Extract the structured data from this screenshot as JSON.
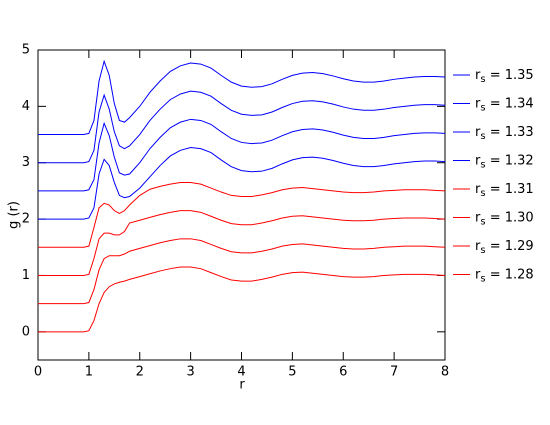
{
  "chart_data": {
    "type": "line",
    "xlabel": "r",
    "ylabel": "g (r)",
    "xlim": [
      0,
      8
    ],
    "ylim": [
      -0.5,
      5
    ],
    "xticks": [
      0,
      1,
      2,
      3,
      4,
      5,
      6,
      7,
      8
    ],
    "yticks": [
      0,
      1,
      2,
      3,
      4,
      5
    ],
    "x": [
      0,
      0.5,
      0.9,
      1.0,
      1.1,
      1.2,
      1.3,
      1.4,
      1.5,
      1.6,
      1.7,
      1.8,
      2.0,
      2.2,
      2.4,
      2.6,
      2.8,
      3.0,
      3.2,
      3.4,
      3.6,
      3.8,
      4.0,
      4.2,
      4.4,
      4.6,
      4.8,
      5.0,
      5.2,
      5.4,
      5.6,
      5.8,
      6.0,
      6.2,
      6.4,
      6.6,
      6.8,
      7.0,
      7.2,
      7.4,
      7.6,
      7.8,
      8.0
    ],
    "series": [
      {
        "name": "rs = 1.35",
        "color": "#0000ff",
        "values": [
          3.5,
          3.5,
          3.5,
          3.52,
          3.75,
          4.45,
          4.8,
          4.55,
          4.05,
          3.75,
          3.72,
          3.8,
          4.0,
          4.25,
          4.45,
          4.62,
          4.72,
          4.77,
          4.75,
          4.68,
          4.55,
          4.43,
          4.36,
          4.34,
          4.35,
          4.4,
          4.48,
          4.55,
          4.59,
          4.6,
          4.58,
          4.54,
          4.49,
          4.45,
          4.43,
          4.43,
          4.45,
          4.48,
          4.5,
          4.52,
          4.53,
          4.53,
          4.52
        ]
      },
      {
        "name": "rs = 1.34",
        "color": "#0000ff",
        "values": [
          3,
          3,
          3,
          3.02,
          3.22,
          3.9,
          4.2,
          3.95,
          3.55,
          3.3,
          3.25,
          3.3,
          3.5,
          3.75,
          3.95,
          4.12,
          4.22,
          4.27,
          4.25,
          4.18,
          4.05,
          3.93,
          3.86,
          3.84,
          3.85,
          3.9,
          3.98,
          4.05,
          4.09,
          4.1,
          4.08,
          4.04,
          3.99,
          3.95,
          3.93,
          3.93,
          3.95,
          3.98,
          4.0,
          4.02,
          4.03,
          4.03,
          4.02
        ]
      },
      {
        "name": "rs = 1.33",
        "color": "#0000ff",
        "values": [
          2.5,
          2.5,
          2.5,
          2.52,
          2.7,
          3.35,
          3.7,
          3.48,
          3.1,
          2.82,
          2.78,
          2.8,
          3.0,
          3.25,
          3.45,
          3.62,
          3.72,
          3.77,
          3.75,
          3.68,
          3.55,
          3.43,
          3.36,
          3.34,
          3.35,
          3.4,
          3.48,
          3.55,
          3.59,
          3.6,
          3.58,
          3.54,
          3.49,
          3.45,
          3.43,
          3.43,
          3.45,
          3.48,
          3.5,
          3.52,
          3.53,
          3.53,
          3.52
        ]
      },
      {
        "name": "rs = 1.32",
        "color": "#0000ff",
        "values": [
          2,
          2,
          2,
          2.02,
          2.2,
          2.8,
          3.06,
          2.95,
          2.65,
          2.42,
          2.38,
          2.4,
          2.55,
          2.75,
          2.95,
          3.12,
          3.22,
          3.27,
          3.25,
          3.18,
          3.05,
          2.93,
          2.86,
          2.84,
          2.85,
          2.9,
          2.98,
          3.05,
          3.09,
          3.1,
          3.08,
          3.04,
          2.99,
          2.95,
          2.93,
          2.93,
          2.95,
          2.98,
          3.0,
          3.02,
          3.03,
          3.03,
          3.02
        ]
      },
      {
        "name": "rs = 1.31",
        "color": "#ff0000",
        "values": [
          1.5,
          1.5,
          1.5,
          1.52,
          1.85,
          2.2,
          2.28,
          2.25,
          2.15,
          2.1,
          2.15,
          2.25,
          2.42,
          2.53,
          2.58,
          2.62,
          2.65,
          2.65,
          2.62,
          2.55,
          2.48,
          2.42,
          2.4,
          2.4,
          2.43,
          2.47,
          2.52,
          2.55,
          2.56,
          2.54,
          2.52,
          2.5,
          2.48,
          2.47,
          2.47,
          2.48,
          2.5,
          2.51,
          2.52,
          2.52,
          2.52,
          2.51,
          2.5
        ]
      },
      {
        "name": "rs = 1.30",
        "color": "#ff0000",
        "values": [
          1,
          1,
          1,
          1.02,
          1.3,
          1.65,
          1.75,
          1.75,
          1.72,
          1.72,
          1.78,
          1.93,
          1.98,
          2.03,
          2.08,
          2.12,
          2.15,
          2.15,
          2.12,
          2.05,
          1.98,
          1.92,
          1.9,
          1.9,
          1.93,
          1.97,
          2.02,
          2.05,
          2.06,
          2.04,
          2.02,
          2.0,
          1.98,
          1.97,
          1.97,
          1.98,
          2.0,
          2.01,
          2.02,
          2.02,
          2.02,
          2.01,
          2.0
        ]
      },
      {
        "name": "rs = 1.29",
        "color": "#ff0000",
        "values": [
          0.5,
          0.5,
          0.5,
          0.52,
          0.75,
          1.1,
          1.3,
          1.35,
          1.35,
          1.35,
          1.38,
          1.43,
          1.48,
          1.53,
          1.58,
          1.62,
          1.65,
          1.65,
          1.62,
          1.55,
          1.48,
          1.42,
          1.4,
          1.4,
          1.43,
          1.47,
          1.52,
          1.55,
          1.56,
          1.54,
          1.52,
          1.5,
          1.48,
          1.47,
          1.47,
          1.48,
          1.5,
          1.51,
          1.52,
          1.52,
          1.52,
          1.51,
          1.5
        ]
      },
      {
        "name": "rs = 1.28",
        "color": "#ff0000",
        "values": [
          0,
          0,
          0,
          0.02,
          0.2,
          0.5,
          0.7,
          0.8,
          0.85,
          0.88,
          0.9,
          0.93,
          0.98,
          1.03,
          1.08,
          1.12,
          1.15,
          1.15,
          1.12,
          1.05,
          0.98,
          0.92,
          0.9,
          0.9,
          0.93,
          0.97,
          1.02,
          1.05,
          1.06,
          1.04,
          1.02,
          1.0,
          0.98,
          0.97,
          0.97,
          0.98,
          1.0,
          1.01,
          1.02,
          1.02,
          1.02,
          1.01,
          1.0
        ]
      }
    ]
  }
}
